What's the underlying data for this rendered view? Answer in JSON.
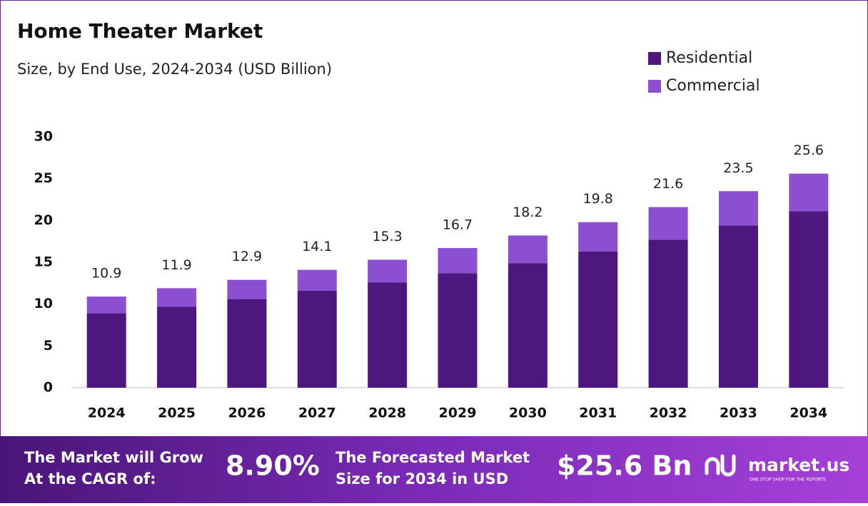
{
  "chart_data": {
    "type": "stacked_bar",
    "title": "Home Theater Market",
    "subtitle": "Size, by End Use, 2024-2034 (USD Billion)",
    "categories": [
      "2024",
      "2025",
      "2026",
      "2027",
      "2028",
      "2029",
      "2030",
      "2031",
      "2032",
      "2033",
      "2034"
    ],
    "series": [
      {
        "name": "Residential",
        "color": "#4e167f",
        "values": [
          8.9,
          9.7,
          10.6,
          11.6,
          12.6,
          13.7,
          14.9,
          16.3,
          17.7,
          19.4,
          21.1
        ]
      },
      {
        "name": "Commercial",
        "color": "#8c4fd1",
        "values": [
          2.0,
          2.2,
          2.3,
          2.5,
          2.7,
          3.0,
          3.3,
          3.5,
          3.9,
          4.1,
          4.5
        ]
      }
    ],
    "totals": [
      10.9,
      11.9,
      12.9,
      14.1,
      15.3,
      16.7,
      18.2,
      19.8,
      21.6,
      23.5,
      25.6
    ],
    "ylim": [
      0,
      30
    ],
    "yticks": [
      0,
      5,
      10,
      15,
      20,
      25,
      30
    ],
    "grid": false,
    "legend": "top-right"
  },
  "banner": {
    "cagr_text": [
      "The Market will Grow",
      "At the CAGR of:"
    ],
    "cagr_value": "8.90%",
    "forecast_text": [
      "The Forecasted Market",
      "Size for 2034 in USD"
    ],
    "forecast_value": "$25.6 Bn",
    "brand": "market.us",
    "tagline": "ONE STOP SHOP FOR THE REPORTS"
  }
}
